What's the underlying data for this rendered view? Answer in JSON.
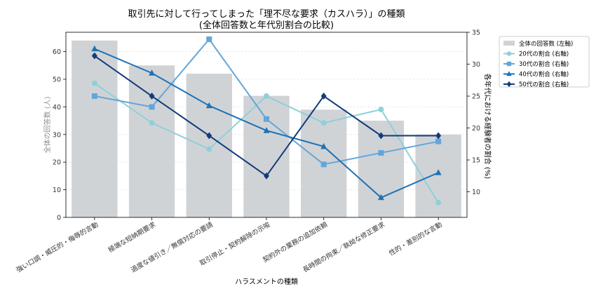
{
  "chart_data": {
    "type": "bar",
    "title": "取引先に対して行ってしまった「理不尽な要求（カスハラ）」の種類",
    "subtitle": "(全体回答数と年代別割合の比較)",
    "xlabel": "ハラスメントの種類",
    "ylabel_left": "全体の回答数 (人)",
    "ylabel_right": "各年代における経験者の割合 (%)",
    "categories": [
      "強い口調・威圧的・侮辱的言動",
      "極端な短納期要求",
      "過度な値引き／無償対応の要請",
      "取引停止・契約解除の示唆",
      "契約外の業務の追加依頼",
      "長時間の拘束／執拗な修正要求",
      "性的・差別的な言動"
    ],
    "ylim_left": [
      0,
      67
    ],
    "ylim_right": [
      6,
      35
    ],
    "yticks_left": [
      0,
      10,
      20,
      30,
      40,
      50,
      60
    ],
    "yticks_right": [
      10,
      15,
      20,
      25,
      30,
      35
    ],
    "grid": true,
    "legend_position": "outside-right",
    "bars": {
      "name": "全体の回答数 (左軸)",
      "color": "#d0d3d6",
      "values": [
        64,
        55,
        52,
        44,
        39,
        35,
        30
      ]
    },
    "series": [
      {
        "name": "20代の割合 (右軸)",
        "color": "#8fd0d8",
        "marker": "circle",
        "values": [
          27.0,
          20.8,
          16.7,
          25.0,
          20.8,
          22.9,
          8.3
        ]
      },
      {
        "name": "30代の割合 (右軸)",
        "color": "#62a6da",
        "marker": "square",
        "values": [
          25.0,
          23.3,
          33.9,
          21.4,
          14.3,
          16.1,
          17.9
        ]
      },
      {
        "name": "40代の割合 (右軸)",
        "color": "#1f72b5",
        "marker": "triangle",
        "values": [
          32.4,
          28.6,
          23.5,
          19.6,
          17.1,
          9.1,
          13.0
        ]
      },
      {
        "name": "50代の割合 (右軸)",
        "color": "#123b7a",
        "marker": "diamond",
        "values": [
          31.3,
          25.0,
          18.8,
          12.5,
          25.0,
          18.8,
          18.8
        ]
      }
    ]
  }
}
